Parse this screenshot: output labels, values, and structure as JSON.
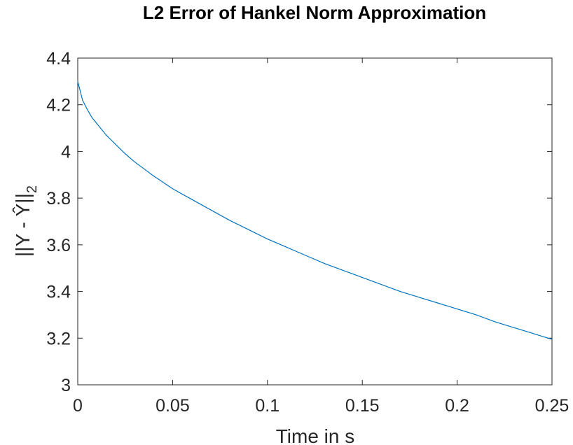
{
  "chart_data": {
    "type": "line",
    "title": "L2 Error of Hankel Norm Approximation",
    "xlabel": "Time in s",
    "ylabel_main": "||Y - Ŷ||",
    "ylabel_sub": "2",
    "xlim": [
      0,
      0.25
    ],
    "ylim": [
      3,
      4.4
    ],
    "xticks": [
      0,
      0.05,
      0.1,
      0.15,
      0.2,
      0.25
    ],
    "xtick_labels": [
      "0",
      "0.05",
      "0.1",
      "0.15",
      "0.2",
      "0.25"
    ],
    "yticks": [
      3,
      3.2,
      3.4,
      3.6,
      3.8,
      4,
      4.2,
      4.4
    ],
    "ytick_labels": [
      "3",
      "3.2",
      "3.4",
      "3.6",
      "3.8",
      "4",
      "4.2",
      "4.4"
    ],
    "grid": false,
    "series": [
      {
        "color": "#0072BD",
        "x": [
          0,
          0.0025,
          0.005,
          0.0075,
          0.01,
          0.0125,
          0.015,
          0.0175,
          0.02,
          0.025,
          0.03,
          0.035,
          0.04,
          0.05,
          0.06,
          0.07,
          0.08,
          0.09,
          0.1,
          0.11,
          0.12,
          0.13,
          0.14,
          0.15,
          0.16,
          0.17,
          0.18,
          0.19,
          0.2,
          0.21,
          0.22,
          0.23,
          0.24,
          0.25
        ],
        "y": [
          4.3,
          4.22,
          4.18,
          4.145,
          4.12,
          4.095,
          4.07,
          4.05,
          4.03,
          3.99,
          3.955,
          3.925,
          3.895,
          3.84,
          3.795,
          3.75,
          3.705,
          3.665,
          3.625,
          3.59,
          3.555,
          3.52,
          3.49,
          3.46,
          3.43,
          3.4,
          3.375,
          3.35,
          3.325,
          3.3,
          3.27,
          3.245,
          3.22,
          3.195
        ]
      }
    ]
  }
}
